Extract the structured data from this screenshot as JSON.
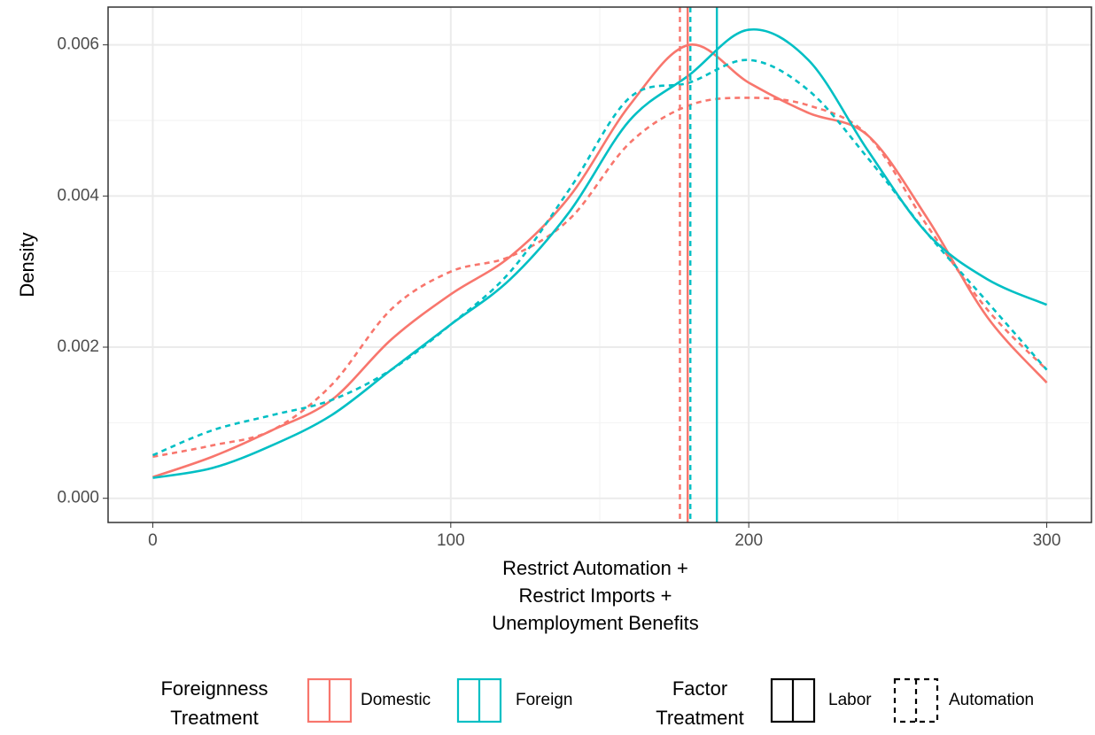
{
  "chart_data": {
    "type": "density",
    "xlabel": [
      "Restrict Automation +",
      "Restrict Imports +",
      "Unemployment Benefits"
    ],
    "ylabel": "Density",
    "x": [
      0,
      20,
      40,
      60,
      80,
      100,
      120,
      140,
      160,
      180,
      200,
      220,
      240,
      260,
      280,
      300
    ],
    "series": [
      {
        "color": "#F8766D",
        "linetype": "solid",
        "mean": 179.5,
        "values": [
          0.00028,
          0.00055,
          0.0009,
          0.0013,
          0.0021,
          0.0027,
          0.0032,
          0.004,
          0.0052,
          0.006,
          0.0055,
          0.0051,
          0.0048,
          0.0037,
          0.0024,
          0.00153
        ]
      },
      {
        "color": "#F8766D",
        "linetype": "dashed",
        "mean": 176.9,
        "values": [
          0.00055,
          0.0007,
          0.0009,
          0.0015,
          0.0025,
          0.003,
          0.0032,
          0.0037,
          0.0047,
          0.0052,
          0.0053,
          0.0052,
          0.0048,
          0.0036,
          0.0025,
          0.0017
        ]
      },
      {
        "color": "#00BFC4",
        "linetype": "solid",
        "mean": 189.3,
        "values": [
          0.00027,
          0.0004,
          0.0007,
          0.0011,
          0.0017,
          0.0023,
          0.0029,
          0.0038,
          0.005,
          0.0056,
          0.0062,
          0.0058,
          0.0046,
          0.0035,
          0.0029,
          0.00256
        ]
      },
      {
        "color": "#00BFC4",
        "linetype": "dashed",
        "mean": 180.4,
        "values": [
          0.00057,
          0.0009,
          0.0011,
          0.0013,
          0.0017,
          0.0023,
          0.003,
          0.0041,
          0.0053,
          0.0055,
          0.0058,
          0.0054,
          0.0045,
          0.0035,
          0.0026,
          0.0017
        ]
      }
    ],
    "xlim": [
      -15,
      315
    ],
    "ylim": [
      -0.00032,
      0.0065
    ],
    "xticks": [
      0,
      100,
      200,
      300
    ],
    "yticks": [
      {
        "value": 0,
        "label": "0.000"
      },
      {
        "value": 0.002,
        "label": "0.002"
      },
      {
        "value": 0.004,
        "label": "0.004"
      },
      {
        "value": 0.006,
        "label": "0.006"
      }
    ],
    "minor_xticks": [
      50,
      150,
      250
    ],
    "minor_yticks": [
      0.001,
      0.003,
      0.005
    ],
    "grid": true,
    "legends": [
      {
        "title": [
          "Foreignness",
          "Treatment"
        ],
        "entries": [
          {
            "label": "Domestic",
            "color": "#F8766D"
          },
          {
            "label": "Foreign",
            "color": "#00BFC4"
          }
        ]
      },
      {
        "title": [
          "Factor",
          "Treatment"
        ],
        "entries": [
          {
            "label": "Labor",
            "linetype": "solid"
          },
          {
            "label": "Automation",
            "linetype": "dashed"
          }
        ]
      }
    ]
  }
}
